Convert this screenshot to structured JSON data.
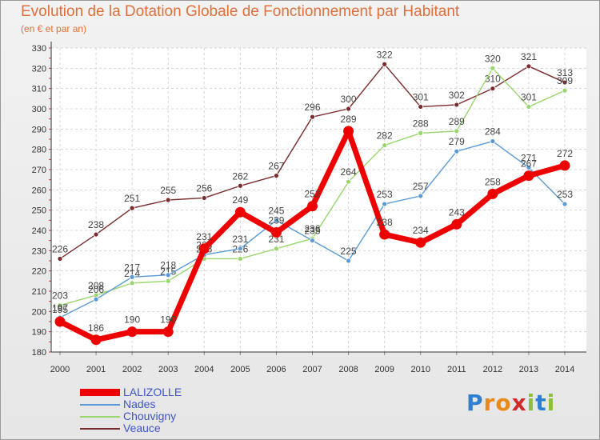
{
  "header": {
    "title": "Evolution de la Dotation Globale de Fonctionnement par Habitant",
    "subtitle": "(en € et par an)"
  },
  "logo": {
    "text": "Proxiti",
    "letters": [
      "P",
      "r",
      "o",
      "x",
      "i",
      "t",
      "i"
    ]
  },
  "legend": {
    "items": [
      {
        "label": "LALIZOLLE",
        "color": "#ee0000"
      },
      {
        "label": "Nades",
        "color": "#5b9bd5"
      },
      {
        "label": "Chouvigny",
        "color": "#9ad56e"
      },
      {
        "label": "Veauce",
        "color": "#7b2b2b"
      }
    ]
  },
  "chart_data": {
    "type": "line",
    "title": "Evolution de la Dotation Globale de Fonctionnement par Habitant",
    "subtitle": "(en € et par an)",
    "xlabel": "",
    "ylabel": "",
    "x": [
      2000,
      2001,
      2002,
      2003,
      2004,
      2005,
      2006,
      2007,
      2008,
      2009,
      2010,
      2011,
      2012,
      2013,
      2014
    ],
    "ylim": [
      180,
      330
    ],
    "yticks": [
      180,
      190,
      200,
      210,
      220,
      230,
      240,
      250,
      260,
      270,
      280,
      290,
      300,
      310,
      320,
      330
    ],
    "grid": true,
    "legend_position": "bottom-left",
    "series": [
      {
        "name": "LALIZOLLE",
        "color": "#ee0000",
        "values": [
          195,
          186,
          190,
          190,
          231,
          249,
          239,
          252,
          289,
          238,
          234,
          243,
          258,
          267,
          272
        ],
        "labels": [
          "195",
          "186",
          "190",
          "190",
          "231",
          "249",
          "239",
          "252",
          "289",
          "238",
          "234",
          "243",
          "258",
          "267",
          "272"
        ]
      },
      {
        "name": "Nades",
        "color": "#5b9bd5",
        "values": [
          197,
          206,
          217,
          218,
          228,
          231,
          245,
          235,
          225,
          253,
          257,
          279,
          284,
          271,
          253
        ],
        "labels": [
          "197",
          "206",
          "217",
          "218",
          "228",
          "231",
          "245",
          "235",
          "225",
          "253",
          "257",
          "279",
          "284",
          "271",
          "253"
        ]
      },
      {
        "name": "Chouvigny",
        "color": "#9ad56e",
        "values": [
          203,
          208,
          214,
          215,
          226,
          226,
          231,
          236,
          264,
          282,
          288,
          289,
          320,
          301,
          309
        ],
        "labels": [
          "203",
          "208",
          "214",
          "215",
          "226",
          "226",
          "231",
          "236",
          "264",
          "282",
          "288",
          "289",
          "320",
          "301",
          "309"
        ]
      },
      {
        "name": "Veauce",
        "color": "#7b2b2b",
        "values": [
          226,
          238,
          251,
          255,
          256,
          262,
          267,
          296,
          300,
          322,
          301,
          302,
          310,
          321,
          313
        ],
        "labels": [
          "226",
          "238",
          "251",
          "255",
          "256",
          "262",
          "267",
          "296",
          "300",
          "322",
          "301",
          "302",
          "310",
          "321",
          "313"
        ]
      }
    ]
  }
}
